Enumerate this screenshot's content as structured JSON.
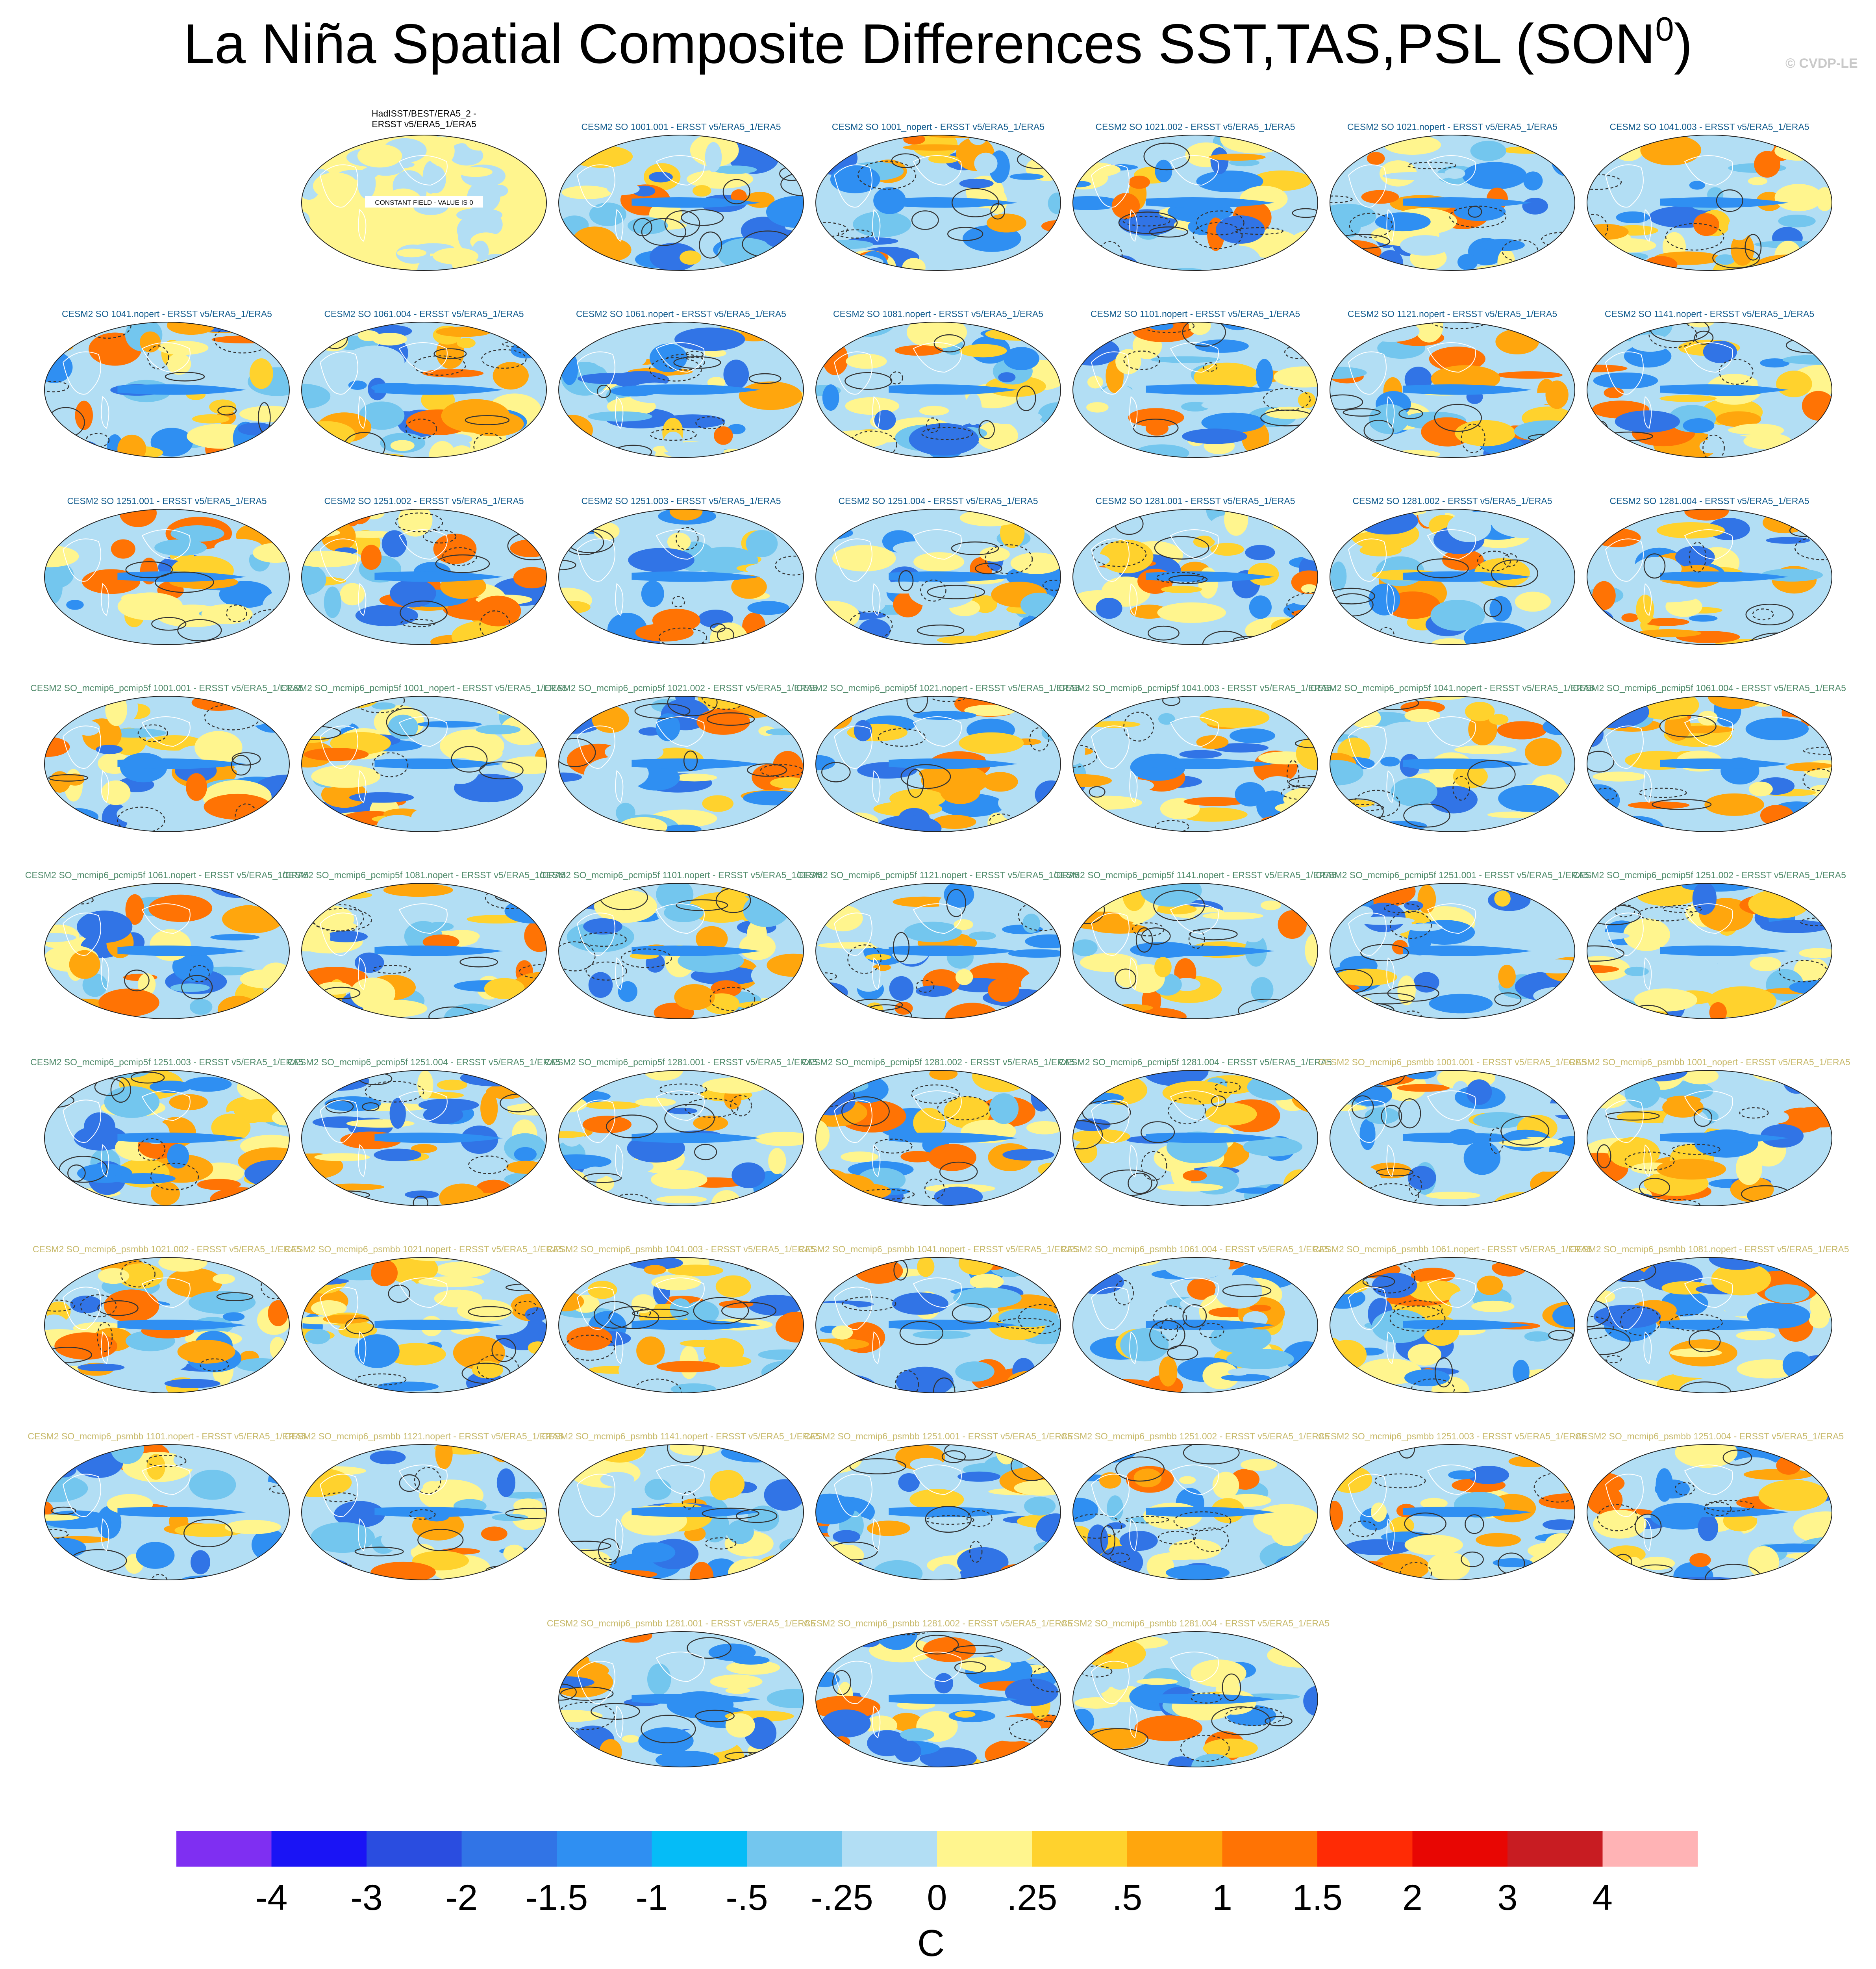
{
  "header": {
    "title": "La Niña Spatial Composite Differences SST,TAS,PSL (SON",
    "title_sup": "0",
    "title_end": ")",
    "credit": "© CVDP-LE"
  },
  "colors": {
    "blue_family": "#0f5a8c",
    "green_family": "#4f8a6a",
    "yellow_family": "#c7b96a"
  },
  "panels": [
    {
      "title": "HadISST/BEST/ERA5_2 -\nERSST v5/ERA5_1/ERA5",
      "family": "ref",
      "note": "CONSTANT FIELD - VALUE IS 0"
    },
    {
      "title": "CESM2 SO 1001.001 - ERSST v5/ERA5_1/ERA5",
      "family": "blue"
    },
    {
      "title": "CESM2 SO 1001_nopert - ERSST v5/ERA5_1/ERA5",
      "family": "blue"
    },
    {
      "title": "CESM2 SO 1021.002 - ERSST v5/ERA5_1/ERA5",
      "family": "blue"
    },
    {
      "title": "CESM2 SO 1021.nopert - ERSST v5/ERA5_1/ERA5",
      "family": "blue"
    },
    {
      "title": "CESM2 SO 1041.003 - ERSST v5/ERA5_1/ERA5",
      "family": "blue"
    },
    {
      "title": "CESM2 SO 1041.nopert - ERSST v5/ERA5_1/ERA5",
      "family": "blue"
    },
    {
      "title": "CESM2 SO 1061.004 - ERSST v5/ERA5_1/ERA5",
      "family": "blue"
    },
    {
      "title": "CESM2 SO 1061.nopert - ERSST v5/ERA5_1/ERA5",
      "family": "blue"
    },
    {
      "title": "CESM2 SO 1081.nopert - ERSST v5/ERA5_1/ERA5",
      "family": "blue"
    },
    {
      "title": "CESM2 SO 1101.nopert - ERSST v5/ERA5_1/ERA5",
      "family": "blue"
    },
    {
      "title": "CESM2 SO 1121.nopert - ERSST v5/ERA5_1/ERA5",
      "family": "blue"
    },
    {
      "title": "CESM2 SO 1141.nopert - ERSST v5/ERA5_1/ERA5",
      "family": "blue"
    },
    {
      "title": "CESM2 SO 1251.001 - ERSST v5/ERA5_1/ERA5",
      "family": "blue"
    },
    {
      "title": "CESM2 SO 1251.002 - ERSST v5/ERA5_1/ERA5",
      "family": "blue"
    },
    {
      "title": "CESM2 SO 1251.003 - ERSST v5/ERA5_1/ERA5",
      "family": "blue"
    },
    {
      "title": "CESM2 SO 1251.004 - ERSST v5/ERA5_1/ERA5",
      "family": "blue"
    },
    {
      "title": "CESM2 SO 1281.001 - ERSST v5/ERA5_1/ERA5",
      "family": "blue"
    },
    {
      "title": "CESM2 SO 1281.002 - ERSST v5/ERA5_1/ERA5",
      "family": "blue"
    },
    {
      "title": "CESM2 SO 1281.004 - ERSST v5/ERA5_1/ERA5",
      "family": "blue"
    },
    {
      "title": "CESM2 SO_mcmip6_pcmip5f 1001.001 - ERSST v5/ERA5_1/ERA5",
      "family": "green"
    },
    {
      "title": "CESM2 SO_mcmip6_pcmip5f 1001_nopert - ERSST v5/ERA5_1/ERA5",
      "family": "green"
    },
    {
      "title": "CESM2 SO_mcmip6_pcmip5f 1021.002 - ERSST v5/ERA5_1/ERA5",
      "family": "green"
    },
    {
      "title": "CESM2 SO_mcmip6_pcmip5f 1021.nopert - ERSST v5/ERA5_1/ERA5",
      "family": "green"
    },
    {
      "title": "CESM2 SO_mcmip6_pcmip5f 1041.003 - ERSST v5/ERA5_1/ERA5",
      "family": "green"
    },
    {
      "title": "CESM2 SO_mcmip6_pcmip5f 1041.nopert - ERSST v5/ERA5_1/ERA5",
      "family": "green"
    },
    {
      "title": "CESM2 SO_mcmip6_pcmip5f 1061.004 - ERSST v5/ERA5_1/ERA5",
      "family": "green"
    },
    {
      "title": "CESM2 SO_mcmip6_pcmip5f 1061.nopert - ERSST v5/ERA5_1/ERA5",
      "family": "green"
    },
    {
      "title": "CESM2 SO_mcmip6_pcmip5f 1081.nopert - ERSST v5/ERA5_1/ERA5",
      "family": "green"
    },
    {
      "title": "CESM2 SO_mcmip6_pcmip5f 1101.nopert - ERSST v5/ERA5_1/ERA5",
      "family": "green"
    },
    {
      "title": "CESM2 SO_mcmip6_pcmip5f 1121.nopert - ERSST v5/ERA5_1/ERA5",
      "family": "green"
    },
    {
      "title": "CESM2 SO_mcmip6_pcmip5f 1141.nopert - ERSST v5/ERA5_1/ERA5",
      "family": "green"
    },
    {
      "title": "CESM2 SO_mcmip6_pcmip5f 1251.001 - ERSST v5/ERA5_1/ERA5",
      "family": "green"
    },
    {
      "title": "CESM2 SO_mcmip6_pcmip5f 1251.002 - ERSST v5/ERA5_1/ERA5",
      "family": "green"
    },
    {
      "title": "CESM2 SO_mcmip6_pcmip5f 1251.003 - ERSST v5/ERA5_1/ERA5",
      "family": "green"
    },
    {
      "title": "CESM2 SO_mcmip6_pcmip5f 1251.004 - ERSST v5/ERA5_1/ERA5",
      "family": "green"
    },
    {
      "title": "CESM2 SO_mcmip6_pcmip5f 1281.001 - ERSST v5/ERA5_1/ERA5",
      "family": "green"
    },
    {
      "title": "CESM2 SO_mcmip6_pcmip5f 1281.002 - ERSST v5/ERA5_1/ERA5",
      "family": "green"
    },
    {
      "title": "CESM2 SO_mcmip6_pcmip5f 1281.004 - ERSST v5/ERA5_1/ERA5",
      "family": "green"
    },
    {
      "title": "CESM2 SO_mcmip6_psmbb 1001.001 - ERSST v5/ERA5_1/ERA5",
      "family": "yellow"
    },
    {
      "title": "CESM2 SO_mcmip6_psmbb 1001_nopert - ERSST v5/ERA5_1/ERA5",
      "family": "yellow"
    },
    {
      "title": "CESM2 SO_mcmip6_psmbb 1021.002 - ERSST v5/ERA5_1/ERA5",
      "family": "yellow"
    },
    {
      "title": "CESM2 SO_mcmip6_psmbb 1021.nopert - ERSST v5/ERA5_1/ERA5",
      "family": "yellow"
    },
    {
      "title": "CESM2 SO_mcmip6_psmbb 1041.003 - ERSST v5/ERA5_1/ERA5",
      "family": "yellow"
    },
    {
      "title": "CESM2 SO_mcmip6_psmbb 1041.nopert - ERSST v5/ERA5_1/ERA5",
      "family": "yellow"
    },
    {
      "title": "CESM2 SO_mcmip6_psmbb 1061.004 - ERSST v5/ERA5_1/ERA5",
      "family": "yellow"
    },
    {
      "title": "CESM2 SO_mcmip6_psmbb 1061.nopert - ERSST v5/ERA5_1/ERA5",
      "family": "yellow"
    },
    {
      "title": "CESM2 SO_mcmip6_psmbb 1081.nopert - ERSST v5/ERA5_1/ERA5",
      "family": "yellow"
    },
    {
      "title": "CESM2 SO_mcmip6_psmbb 1101.nopert - ERSST v5/ERA5_1/ERA5",
      "family": "yellow"
    },
    {
      "title": "CESM2 SO_mcmip6_psmbb 1121.nopert - ERSST v5/ERA5_1/ERA5",
      "family": "yellow"
    },
    {
      "title": "CESM2 SO_mcmip6_psmbb 1141.nopert - ERSST v5/ERA5_1/ERA5",
      "family": "yellow"
    },
    {
      "title": "CESM2 SO_mcmip6_psmbb 1251.001 - ERSST v5/ERA5_1/ERA5",
      "family": "yellow"
    },
    {
      "title": "CESM2 SO_mcmip6_psmbb 1251.002 - ERSST v5/ERA5_1/ERA5",
      "family": "yellow"
    },
    {
      "title": "CESM2 SO_mcmip6_psmbb 1251.003 - ERSST v5/ERA5_1/ERA5",
      "family": "yellow"
    },
    {
      "title": "CESM2 SO_mcmip6_psmbb 1251.004 - ERSST v5/ERA5_1/ERA5",
      "family": "yellow"
    },
    {
      "title": "CESM2 SO_mcmip6_psmbb 1281.001 - ERSST v5/ERA5_1/ERA5",
      "family": "yellow"
    },
    {
      "title": "CESM2 SO_mcmip6_psmbb 1281.002 - ERSST v5/ERA5_1/ERA5",
      "family": "yellow"
    },
    {
      "title": "CESM2 SO_mcmip6_psmbb 1281.004 - ERSST v5/ERA5_1/ERA5",
      "family": "yellow"
    }
  ],
  "chart_data": {
    "type": "heatmap",
    "title": "La Niña Spatial Composite Differences SST,TAS,PSL (SON0)",
    "panel_count": 57,
    "colorbar": {
      "units": "C",
      "tick_labels": [
        "-4",
        "-3",
        "-2",
        "-1.5",
        "-1",
        "-.5",
        "-.25",
        "0",
        ".25",
        ".5",
        "1",
        "1.5",
        "2",
        "3",
        "4"
      ],
      "colors": [
        "#7f2ff2",
        "#1a14f5",
        "#2a4de0",
        "#3174e6",
        "#2f8ff2",
        "#05bcf7",
        "#73c6ee",
        "#b2def4",
        "#fff58e",
        "#ffd22d",
        "#ffa60d",
        "#ff7304",
        "#ff2b05",
        "#e80603",
        "#c81c22",
        "#ffb3b5"
      ]
    },
    "contours": "PSL difference: solid positive, dashed negative"
  }
}
